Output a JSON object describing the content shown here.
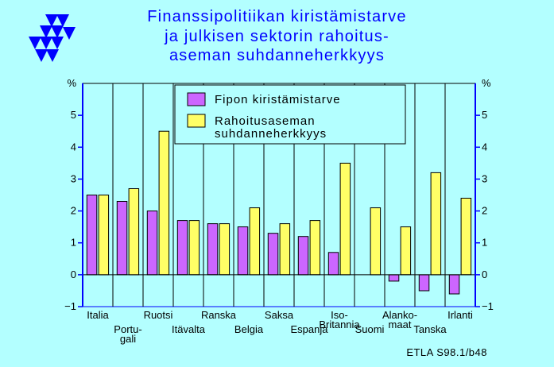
{
  "chart_data": {
    "type": "bar",
    "title_lines": [
      "Finanssipolitiikan kiristämistarve",
      "ja julkisen sektorin rahoitus-",
      "aseman suhdanneherkkyys"
    ],
    "y_unit_left": "%",
    "y_unit_right": "%",
    "ylim": [
      -1,
      6
    ],
    "yticks": [
      -1,
      0,
      1,
      2,
      3,
      4,
      5
    ],
    "grid": true,
    "legend_position": "top-center",
    "categories": [
      "Italia",
      "Portugali",
      "Ruotsi",
      "Itävalta",
      "Ranska",
      "Belgia",
      "Saksa",
      "Espanja",
      "Iso-Britannia",
      "Suomi",
      "Alankomaat",
      "Tanska",
      "Irlanti"
    ],
    "category_label_lines": [
      [
        "Italia"
      ],
      [
        "Portu-",
        "gali"
      ],
      [
        "Ruotsi"
      ],
      [
        "Itävalta"
      ],
      [
        "Ranska"
      ],
      [
        "Belgia"
      ],
      [
        "Saksa"
      ],
      [
        "Espanja"
      ],
      [
        "Iso-",
        "Britannia"
      ],
      [
        "Suomi"
      ],
      [
        "Alanko-",
        "maat"
      ],
      [
        "Tanska"
      ],
      [
        "Irlanti"
      ]
    ],
    "series": [
      {
        "name": "Fipon kiristämistarve",
        "legend_lines": [
          "Fipon kiristämistarve"
        ],
        "color": "#cc66ff",
        "values": [
          2.5,
          2.3,
          2.0,
          1.7,
          1.6,
          1.5,
          1.3,
          1.2,
          0.7,
          null,
          -0.2,
          -0.5,
          -0.6
        ]
      },
      {
        "name": "Rahoitusaseman suhdanneherkkyys",
        "legend_lines": [
          "Rahoitusaseman",
          "suhdanneherkkyys"
        ],
        "color": "#ffff66",
        "values": [
          2.5,
          2.7,
          4.5,
          1.7,
          1.6,
          2.1,
          1.6,
          1.7,
          3.5,
          2.1,
          1.5,
          3.2,
          2.4
        ]
      }
    ]
  },
  "source": "ETLA S98.1/b48",
  "colors": {
    "background": "#b3ffff",
    "axis": "#0000ff",
    "title": "#0000ff",
    "logo": "#0000ff"
  }
}
